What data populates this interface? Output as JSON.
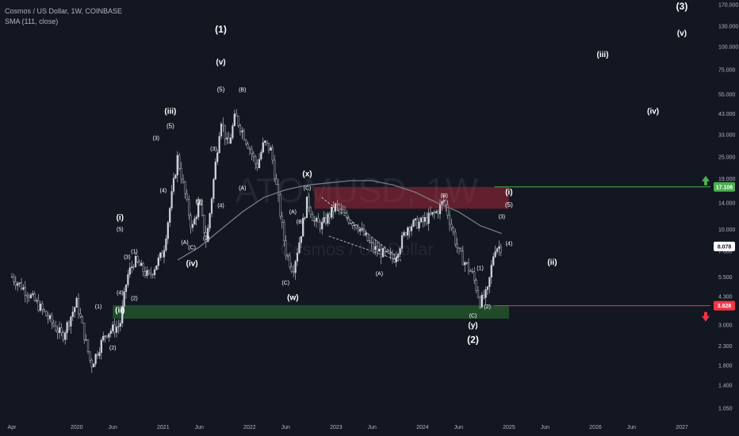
{
  "header": {
    "title": "Cosmos / US Dollar, 1W, COINBASE",
    "indicator": "SMA (111, close)"
  },
  "watermark": {
    "symbol": "ATOMUSD, 1W",
    "subtitle": "Cosmos / US Dollar"
  },
  "colors": {
    "background": "#131722",
    "candle": "#d1d4dc",
    "sma": "#787b86",
    "support_zone": "#2e7d32",
    "resistance_zone": "#b2293a",
    "green_line": "#4caf50",
    "red_line": "#f23645",
    "current_price_tag": "#ffffff"
  },
  "price_tags": {
    "upper": "17.106",
    "current": "8.078",
    "lower": "3.828"
  },
  "chart_data": {
    "type": "line",
    "title": "Cosmos / US Dollar, 1W, COINBASE",
    "scale": "log",
    "ylim": [
      1.05,
      170
    ],
    "y_ticks": [
      "170.000",
      "130.000",
      "100.000",
      "75.000",
      "55.000",
      "43.000",
      "33.000",
      "25.000",
      "19.000",
      "14.000",
      "10.000",
      "7.600",
      "5.500",
      "4.300",
      "3.000",
      "2.300",
      "1.800",
      "1.400",
      "1.050"
    ],
    "x_ticks": [
      "Apr",
      "2020",
      "Jun",
      "2021",
      "Jun",
      "2022",
      "Jun",
      "2023",
      "Jun",
      "2024",
      "Jun",
      "2025",
      "Jun",
      "2026",
      "Jun",
      "2027"
    ],
    "x_tick_dates": [
      "2019-04",
      "2020-01",
      "2020-06",
      "2021-01",
      "2021-06",
      "2022-01",
      "2022-06",
      "2023-01",
      "2023-06",
      "2024-01",
      "2024-06",
      "2025-01",
      "2025-06",
      "2026-01",
      "2026-06",
      "2027-01"
    ],
    "series": [
      {
        "name": "ATOMUSD",
        "x": [
          "2019-04",
          "2019-06",
          "2019-08",
          "2019-11",
          "2020-01",
          "2020-03",
          "2020-05",
          "2020-07",
          "2020-08",
          "2020-09",
          "2020-11",
          "2021-01",
          "2021-03",
          "2021-05",
          "2021-06",
          "2021-07",
          "2021-09",
          "2021-10",
          "2021-11",
          "2022-01",
          "2022-02",
          "2022-03",
          "2022-04",
          "2022-06",
          "2022-07",
          "2022-08",
          "2022-09",
          "2022-10",
          "2022-11",
          "2023-01",
          "2023-02",
          "2023-04",
          "2023-06",
          "2023-08",
          "2023-09",
          "2023-11",
          "2024-01",
          "2024-03",
          "2024-04",
          "2024-06",
          "2024-08",
          "2024-09",
          "2024-10",
          "2024-11",
          "2024-12"
        ],
        "values": [
          5.5,
          4.6,
          3.7,
          2.6,
          4.0,
          1.8,
          2.7,
          3.0,
          5.5,
          6.8,
          5.5,
          7.5,
          25,
          10,
          14,
          8.5,
          41,
          28,
          42,
          28,
          22,
          30,
          27,
          7.6,
          6.0,
          9.0,
          14.5,
          11,
          10.5,
          13.5,
          12,
          10.5,
          8.0,
          7.2,
          6.9,
          10.5,
          11,
          12.5,
          14.5,
          7.5,
          5.6,
          4.0,
          4.5,
          8.0,
          8.078
        ]
      },
      {
        "name": "SMA (111, close)",
        "x": [
          "2021-03",
          "2021-06",
          "2021-09",
          "2021-12",
          "2022-03",
          "2022-06",
          "2022-09",
          "2022-12",
          "2023-03",
          "2023-06",
          "2023-09",
          "2023-12",
          "2024-03",
          "2024-06",
          "2024-09",
          "2024-12"
        ],
        "values": [
          6.8,
          8.0,
          10.0,
          12.5,
          15.0,
          16.5,
          17.5,
          18.0,
          18.5,
          18.5,
          17.5,
          16.0,
          14.0,
          12.5,
          10.5,
          9.5
        ]
      }
    ],
    "levels": [
      {
        "label": "17.106",
        "value": 17.106,
        "color": "#4caf50"
      },
      {
        "label": "3.828",
        "value": 3.828,
        "color": "#f23645"
      }
    ],
    "zones": [
      {
        "type": "support",
        "from": 3.25,
        "to": 3.85
      },
      {
        "type": "resistance",
        "from": 13.0,
        "to": 17.1
      }
    ],
    "wave_labels": [
      {
        "text": "(1)",
        "x": "2021-09",
        "y": 120,
        "size": 12
      },
      {
        "text": "(v)",
        "x": "2021-09",
        "y": 80,
        "size": 10
      },
      {
        "text": "(5)",
        "x": "2021-09",
        "y": 57,
        "size": 8
      },
      {
        "text": "(B)",
        "x": "2021-12",
        "y": 57,
        "size": 7
      },
      {
        "text": "(iii)",
        "x": "2021-02",
        "y": 43,
        "size": 10
      },
      {
        "text": "(5)",
        "x": "2021-02",
        "y": 36,
        "size": 8
      },
      {
        "text": "(3)",
        "x": "2020-12",
        "y": 31,
        "size": 7
      },
      {
        "text": "(3)",
        "x": "2021-08",
        "y": 27,
        "size": 7
      },
      {
        "text": "(4)",
        "x": "2021-01",
        "y": 16,
        "size": 7
      },
      {
        "text": "(B)",
        "x": "2021-06",
        "y": 14,
        "size": 7
      },
      {
        "text": "(1)",
        "x": "2021-06",
        "y": 13.8,
        "size": 7
      },
      {
        "text": "(4)",
        "x": "2021-09",
        "y": 13.2,
        "size": 7
      },
      {
        "text": "(A)",
        "x": "2021-12",
        "y": 16.5,
        "size": 7
      },
      {
        "text": "(x)",
        "x": "2022-09",
        "y": 19.5,
        "size": 10
      },
      {
        "text": "(C)",
        "x": "2022-09",
        "y": 16.5,
        "size": 7
      },
      {
        "text": "(A)",
        "x": "2022-07",
        "y": 12.2,
        "size": 7
      },
      {
        "text": "(B)",
        "x": "2022-08",
        "y": 10.8,
        "size": 7
      },
      {
        "text": "(2)",
        "x": "2021-07",
        "y": 8.8,
        "size": 7
      },
      {
        "text": "(A)",
        "x": "2021-04",
        "y": 8.3,
        "size": 7
      },
      {
        "text": "(C)",
        "x": "2021-05",
        "y": 7.8,
        "size": 7
      },
      {
        "text": "(iv)",
        "x": "2021-05",
        "y": 6.3,
        "size": 10
      },
      {
        "text": "(C)",
        "x": "2022-06",
        "y": 5.0,
        "size": 7
      },
      {
        "text": "(i)",
        "x": "2020-07",
        "y": 11.3,
        "size": 10
      },
      {
        "text": "(5)",
        "x": "2020-07",
        "y": 9.8,
        "size": 7
      },
      {
        "text": "(3)",
        "x": "2020-08",
        "y": 6.9,
        "size": 7
      },
      {
        "text": "(1)",
        "x": "2020-09",
        "y": 7.4,
        "size": 7
      },
      {
        "text": "(4)",
        "x": "2020-07",
        "y": 4.4,
        "size": 7
      },
      {
        "text": "(2)",
        "x": "2020-09",
        "y": 4.1,
        "size": 7
      },
      {
        "text": "(ii)",
        "x": "2020-07",
        "y": 3.5,
        "size": 10
      },
      {
        "text": "(1)",
        "x": "2020-04",
        "y": 3.7,
        "size": 7
      },
      {
        "text": "(2)",
        "x": "2020-06",
        "y": 2.2,
        "size": 7
      },
      {
        "text": "(w)",
        "x": "2022-07",
        "y": 4.1,
        "size": 10
      },
      {
        "text": "(A)",
        "x": "2023-07",
        "y": 5.6,
        "size": 7
      },
      {
        "text": "(B)",
        "x": "2024-04",
        "y": 15.0,
        "size": 7
      },
      {
        "text": "(1)",
        "x": "2024-09",
        "y": 6.0,
        "size": 7
      },
      {
        "text": "(C)",
        "x": "2024-08",
        "y": 3.3,
        "size": 7
      },
      {
        "text": "(2)",
        "x": "2024-10",
        "y": 3.7,
        "size": 7
      },
      {
        "text": "(y)",
        "x": "2024-08",
        "y": 2.9,
        "size": 10
      },
      {
        "text": "(2)",
        "x": "2024-08",
        "y": 2.4,
        "size": 12
      },
      {
        "text": "(i)",
        "x": "2025-01",
        "y": 15.5,
        "size": 10
      },
      {
        "text": "(5)",
        "x": "2025-01",
        "y": 13.3,
        "size": 8
      },
      {
        "text": "(3)",
        "x": "2024-12",
        "y": 11.5,
        "size": 7
      },
      {
        "text": "(4)",
        "x": "2025-01",
        "y": 8.2,
        "size": 7
      },
      {
        "text": "(ii)",
        "x": "2025-07",
        "y": 6.4,
        "size": 10
      },
      {
        "text": "(iii)",
        "x": "2026-02",
        "y": 88,
        "size": 10
      },
      {
        "text": "(iv)",
        "x": "2026-09",
        "y": 43,
        "size": 10
      },
      {
        "text": "(3)",
        "x": "2027-01",
        "y": 160,
        "size": 12
      },
      {
        "text": "(v)",
        "x": "2027-01",
        "y": 115,
        "size": 10
      }
    ]
  }
}
